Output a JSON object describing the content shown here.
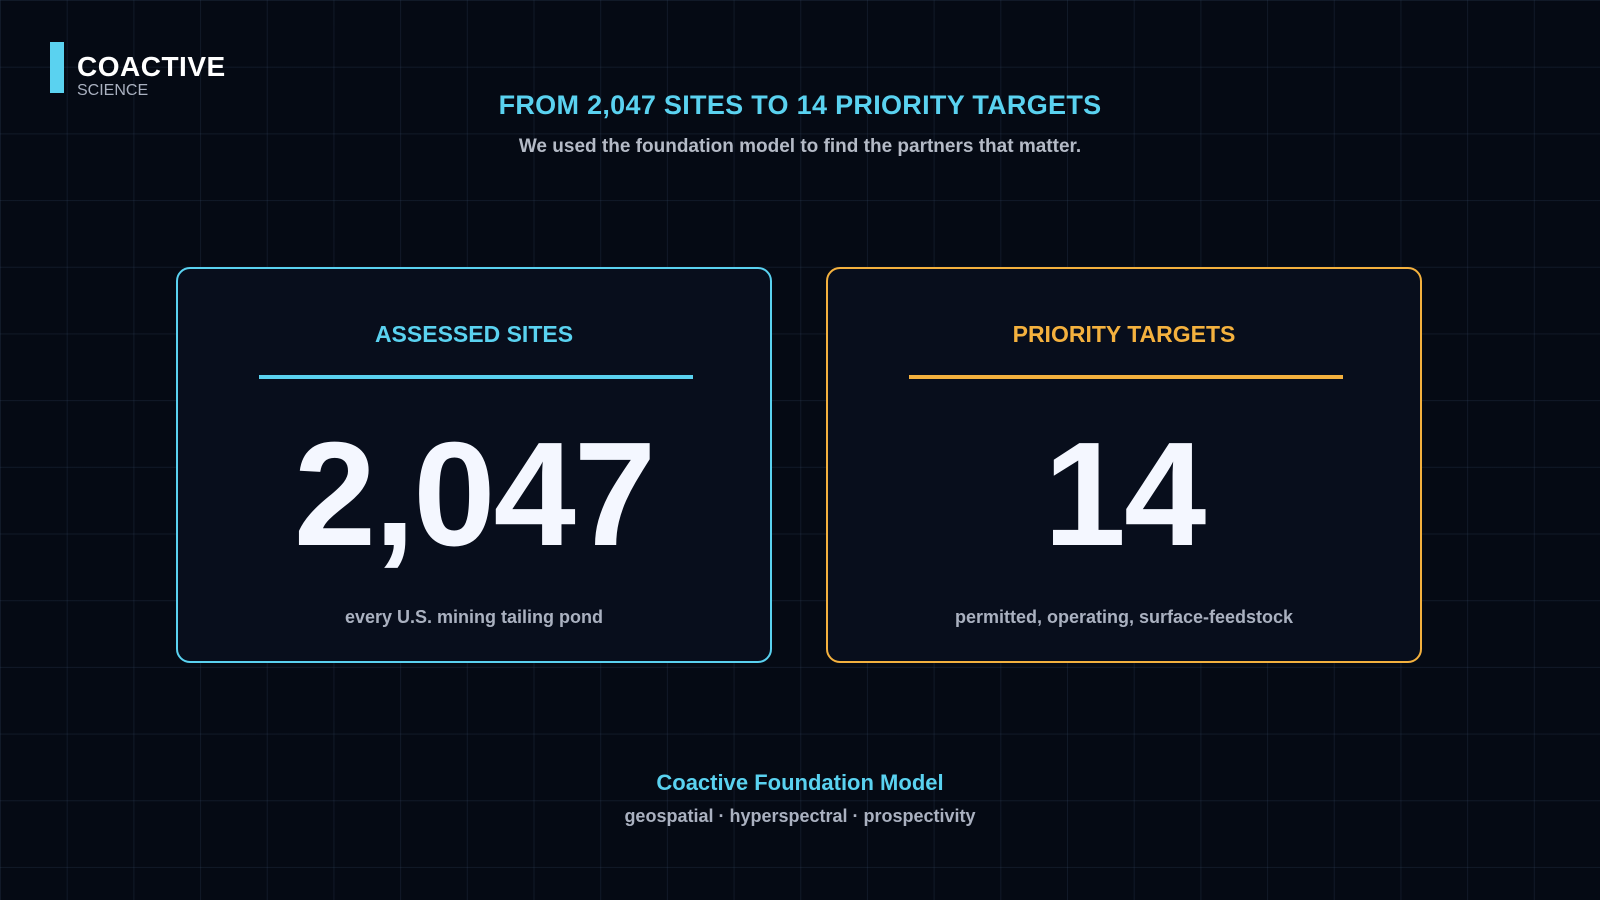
{
  "brand": {
    "name": "COACTIVE",
    "subtitle": "SCIENCE"
  },
  "header": {
    "title": "FROM 2,047 SITES TO 14 PRIORITY TARGETS",
    "subtitle": "We used the foundation model to find the partners that matter."
  },
  "cards": [
    {
      "title": "ASSESSED SITES",
      "value": "2,047",
      "caption": "every U.S. mining tailing pond",
      "accent_color": "#5ad2f0"
    },
    {
      "title": "PRIORITY TARGETS",
      "value": "14",
      "caption": "permitted, operating, surface-feedstock",
      "accent_color": "#f4b13e"
    }
  ],
  "footer": {
    "title": "Coactive Foundation Model",
    "subtitle": "geospatial · hyperspectral · prospectivity"
  },
  "colors": {
    "background": "#050a14",
    "accent_cyan": "#5ad2f0",
    "accent_orange": "#f4b13e",
    "text_muted": "#aab1c0"
  }
}
